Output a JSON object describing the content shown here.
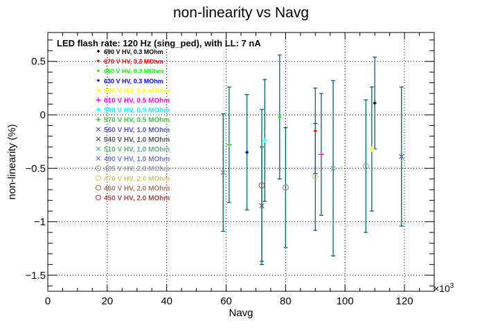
{
  "chart_data": {
    "type": "scatter",
    "title": "non-linearity vs Navg",
    "subtitle": "LED flash rate: 120 Hz  (sing_ped), with LL: 7 nA",
    "xlabel": "Navg",
    "ylabel": "non-linearity (%)",
    "x_multiplier_label": "×10",
    "x_multiplier_exponent": "3",
    "xlim": [
      0,
      130
    ],
    "ylim": [
      -1.65,
      0.77
    ],
    "x_ticks": [
      0,
      20,
      40,
      60,
      80,
      100,
      120
    ],
    "x_tick_labels": [
      "0",
      "20",
      "40",
      "60",
      "80",
      "100",
      "120"
    ],
    "y_ticks": [
      0.5,
      0,
      -0.5,
      -1,
      -1.5
    ],
    "y_tick_labels": [
      "0.5",
      "0",
      "−0.5",
      "−1",
      "−1.5"
    ],
    "grid": true,
    "legend_position": "top-left",
    "errorbar_color": "#006666",
    "series": [
      {
        "name": "690 V HV, 0.3 MOhm",
        "color": "#000000",
        "marker": "dot",
        "points": [
          {
            "x": 110,
            "y": 0.11,
            "err": 0.43
          }
        ]
      },
      {
        "name": "670 V HV, 0.3 MOhm",
        "color": "#ff0000",
        "marker": "dot",
        "points": [
          {
            "x": 90,
            "y": -0.15,
            "err": 0.4
          }
        ]
      },
      {
        "name": "650 V HV, 0.3 MOhm",
        "color": "#00ff00",
        "marker": "dot",
        "points": [
          {
            "x": 78,
            "y": -0.02,
            "err": 0.58
          }
        ]
      },
      {
        "name": "630 V HV, 0.3 MOhm",
        "color": "#0000ff",
        "marker": "dot",
        "points": [
          {
            "x": 67,
            "y": -0.35,
            "err": 0.54
          }
        ]
      },
      {
        "name": "630 V HV, 0.5 MOhm",
        "color": "#ffff00",
        "marker": "plus",
        "points": [
          {
            "x": 109,
            "y": -0.32,
            "err": 0.58
          }
        ]
      },
      {
        "name": "610 V HV, 0.5 MOhm",
        "color": "#ff00ff",
        "marker": "plus",
        "points": [
          {
            "x": 92,
            "y": -0.37,
            "err": 0.57
          }
        ]
      },
      {
        "name": "590 V HV, 0.5 MOhm",
        "color": "#00ffff",
        "marker": "plus",
        "points": [
          {
            "x": 73,
            "y": -0.24,
            "err": 0.57
          }
        ]
      },
      {
        "name": "570 V HV, 0.5 MOhm",
        "color": "#33cc33",
        "marker": "plus",
        "points": [
          {
            "x": 61,
            "y": -0.28,
            "err": 0.54
          }
        ]
      },
      {
        "name": "560 V HV, 1.0 MOhm",
        "color": "#5555cc",
        "marker": "cross",
        "points": [
          {
            "x": 119,
            "y": -0.39,
            "err": 0.65
          }
        ]
      },
      {
        "name": "540 V HV, 1.0 MOhm",
        "color": "#555555",
        "marker": "cross",
        "points": [
          {
            "x": 72,
            "y": -0.85,
            "err": 0.55
          }
        ]
      },
      {
        "name": "510 V HV, 1.0 MOhm",
        "color": "#66aa88",
        "marker": "cross",
        "points": [
          {
            "x": 96,
            "y": -0.5,
            "err": 0.82
          }
        ]
      },
      {
        "name": "490 V HV, 1.0 MOhm",
        "color": "#7777cc",
        "marker": "cross",
        "points": [
          {
            "x": 59,
            "y": -0.54,
            "err": 0.55
          }
        ]
      },
      {
        "name": "485 V HV, 2.0 MOhm",
        "color": "#9999aa",
        "marker": "circle",
        "points": [
          {
            "x": 107,
            "y": -0.48,
            "err": 0.62
          }
        ]
      },
      {
        "name": "470 V HV, 2.0 MOhm",
        "color": "#cccc66",
        "marker": "circle",
        "points": [
          {
            "x": 90,
            "y": -0.58,
            "err": 0.5
          }
        ]
      },
      {
        "name": "460 V HV, 2.0 MOhm",
        "color": "#aa7766",
        "marker": "circle",
        "points": [
          {
            "x": 80,
            "y": -0.68,
            "err": 0.56
          }
        ]
      },
      {
        "name": "450 V HV, 2.0 MOhm",
        "color": "#aa4444",
        "marker": "circle",
        "points": [
          {
            "x": 72,
            "y": -0.66,
            "err": 0.71
          }
        ]
      }
    ]
  }
}
